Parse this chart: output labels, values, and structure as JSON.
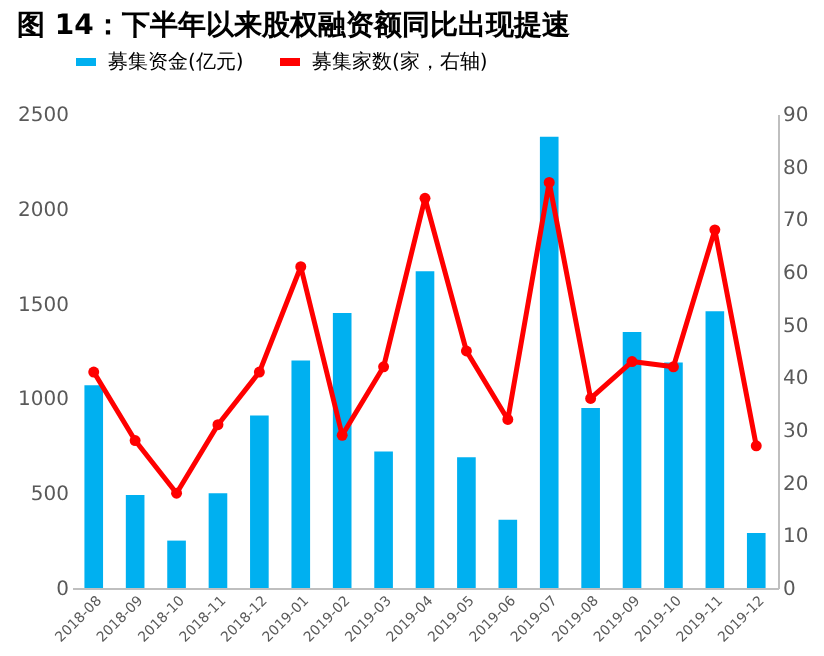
{
  "chart_data": {
    "type": "bar",
    "title": "图 14：下半年以来股权融资额同比出现提速",
    "categories": [
      "2018-08",
      "2018-09",
      "2018-10",
      "2018-11",
      "2018-12",
      "2019-01",
      "2019-02",
      "2019-03",
      "2019-04",
      "2019-05",
      "2019-06",
      "2019-07",
      "2019-08",
      "2019-09",
      "2019-10",
      "2019-11",
      "2019-12"
    ],
    "series": [
      {
        "name": "募集资金(亿元)",
        "color": "#00b0f0",
        "values": [
          1070,
          490,
          250,
          500,
          910,
          1200,
          1450,
          720,
          1670,
          690,
          360,
          2380,
          950,
          1350,
          1190,
          1460,
          290
        ]
      },
      {
        "name": "募集家数(家，右轴)",
        "type": "line",
        "axis": "y2",
        "color": "#ff0000",
        "marker": "circle",
        "values": [
          41,
          28,
          18,
          31,
          41,
          61,
          29,
          42,
          74,
          45,
          32,
          77,
          36,
          43,
          42,
          68,
          27
        ]
      }
    ],
    "ylim": [
      0,
      2500
    ],
    "yticks": [
      0,
      500,
      1000,
      1500,
      2000,
      2500
    ],
    "y2lim": [
      0,
      90
    ],
    "y2ticks": [
      0,
      10,
      20,
      30,
      40,
      50,
      60,
      70,
      80,
      90
    ],
    "grid": false,
    "legend": "top"
  }
}
